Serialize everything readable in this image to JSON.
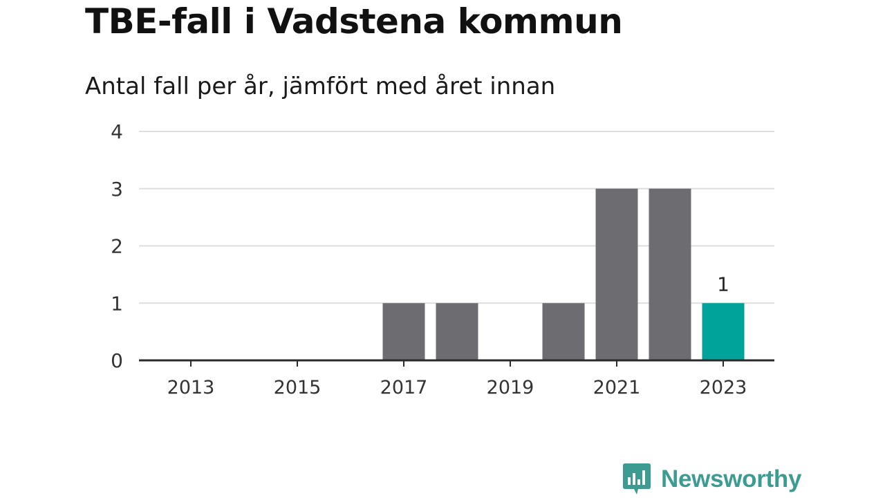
{
  "title": "TBE-fall i Vadstena kommun",
  "subtitle": "Antal fall per år, jämfört med året innan",
  "brand": "Newsworthy",
  "colors": {
    "bar": "#6d6c71",
    "highlight": "#00a39a",
    "brand": "#3d9c92",
    "grid": "#dddddd",
    "axis": "#2a2a2a",
    "text": "#333333"
  },
  "icons": {
    "logo": "bar-chart-speech-bubble-icon"
  },
  "chart_data": {
    "type": "bar",
    "categories": [
      "2013",
      "2014",
      "2015",
      "2016",
      "2017",
      "2018",
      "2019",
      "2020",
      "2021",
      "2022",
      "2023"
    ],
    "values": [
      0,
      0,
      0,
      0,
      1,
      1,
      0,
      1,
      3,
      3,
      1
    ],
    "highlight_index": 10,
    "data_labels": [
      {
        "index": 10,
        "text": "1"
      }
    ],
    "x_tick_labels": [
      "2013",
      "2015",
      "2017",
      "2019",
      "2021",
      "2023"
    ],
    "y_ticks": [
      0,
      1,
      2,
      3,
      4
    ],
    "ylim": [
      0,
      4
    ],
    "grid": true,
    "legend": "none",
    "xlabel": "",
    "ylabel": ""
  }
}
